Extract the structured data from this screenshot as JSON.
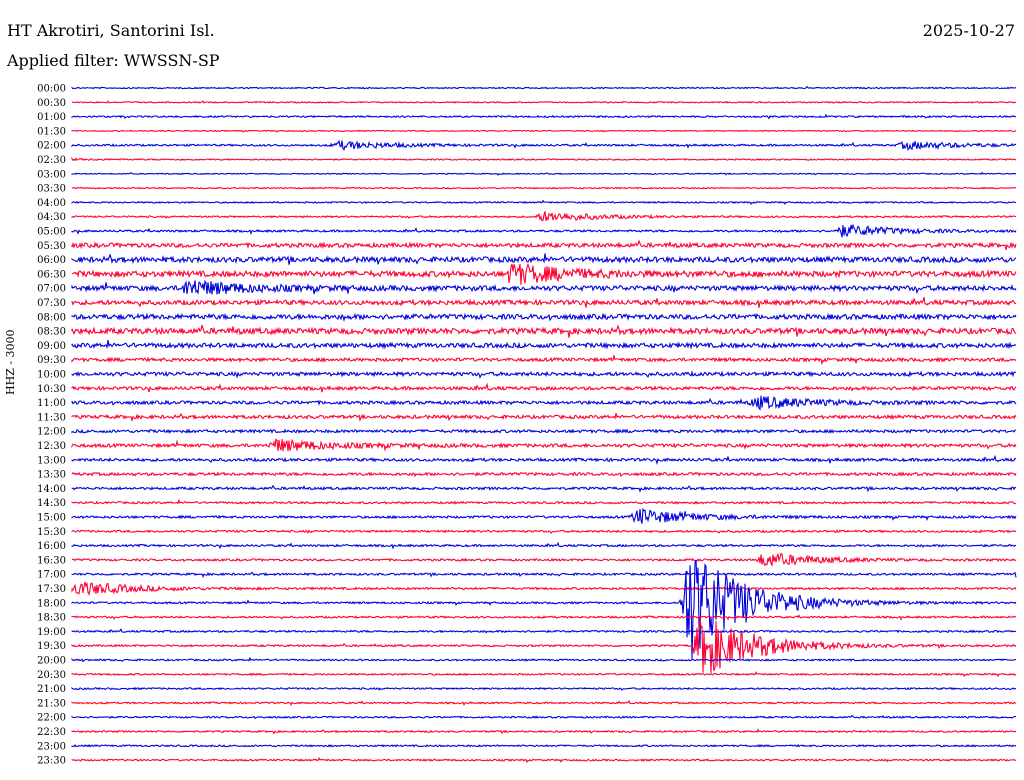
{
  "header": {
    "station": "HT Akrotiri, Santorini Isl.",
    "date": "2025-10-27",
    "filter": "Applied filter: WWSSN-SP"
  },
  "colors": {
    "trace_even": "#0000dd",
    "trace_odd": "#ff0033",
    "text": "#000000"
  },
  "chart_data": {
    "type": "line",
    "title": "HT Akrotiri, Santorini Isl.",
    "ylabel": "HHZ - 3000",
    "xlabel": "",
    "rows": [
      "00:00",
      "00:30",
      "01:00",
      "01:30",
      "02:00",
      "02:30",
      "03:00",
      "03:30",
      "04:00",
      "04:30",
      "05:00",
      "05:30",
      "06:00",
      "06:30",
      "07:00",
      "07:30",
      "08:00",
      "08:30",
      "09:00",
      "09:30",
      "10:00",
      "10:30",
      "11:00",
      "11:30",
      "12:00",
      "12:30",
      "13:00",
      "13:30",
      "14:00",
      "14:30",
      "15:00",
      "15:30",
      "16:00",
      "16:30",
      "17:00",
      "17:30",
      "18:00",
      "18:30",
      "19:00",
      "19:30",
      "20:00",
      "20:30",
      "21:00",
      "21:30",
      "22:00",
      "22:30",
      "23:00",
      "23:30"
    ],
    "row_duration_min": 30,
    "noise_level": [
      0.6,
      0.6,
      0.8,
      0.5,
      0.9,
      0.6,
      0.5,
      0.6,
      0.7,
      0.8,
      1.0,
      2.0,
      2.6,
      2.8,
      2.4,
      2.2,
      2.4,
      2.8,
      2.2,
      1.6,
      1.8,
      1.6,
      1.6,
      1.6,
      1.4,
      1.6,
      1.4,
      1.4,
      1.2,
      1.0,
      1.1,
      1.0,
      1.0,
      1.0,
      1.0,
      1.0,
      0.9,
      0.9,
      0.9,
      0.9,
      0.8,
      0.8,
      0.8,
      0.8,
      0.8,
      0.8,
      0.8,
      0.8
    ],
    "events": [
      {
        "row": "02:00",
        "minute": 8.5,
        "amplitude": 4
      },
      {
        "row": "02:00",
        "minute": 26.5,
        "amplitude": 4
      },
      {
        "row": "04:30",
        "minute": 15.0,
        "amplitude": 5
      },
      {
        "row": "05:00",
        "minute": 24.5,
        "amplitude": 6
      },
      {
        "row": "06:30",
        "minute": 14.0,
        "amplitude": 10
      },
      {
        "row": "07:00",
        "minute": 3.7,
        "amplitude": 8
      },
      {
        "row": "11:00",
        "minute": 21.8,
        "amplitude": 6
      },
      {
        "row": "12:30",
        "minute": 6.5,
        "amplitude": 6
      },
      {
        "row": "15:00",
        "minute": 18.0,
        "amplitude": 8
      },
      {
        "row": "16:30",
        "minute": 22.0,
        "amplitude": 7
      },
      {
        "row": "17:30",
        "minute": 0.2,
        "amplitude": 7
      },
      {
        "row": "18:00",
        "minute": 19.6,
        "amplitude": 60
      },
      {
        "row": "19:30",
        "minute": 20.0,
        "amplitude": 32
      }
    ]
  }
}
